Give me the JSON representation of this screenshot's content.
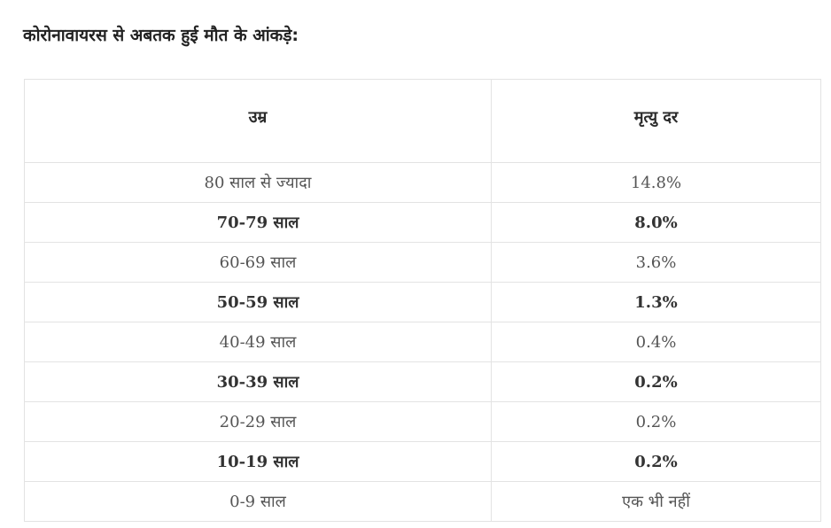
{
  "heading": "कोरोनावायरस से अबतक हुई मौत के आंकड़े:",
  "table": {
    "headers": [
      "उम्र",
      "मृत्यु दर"
    ],
    "rows": [
      {
        "age": "80 साल से ज्यादा",
        "rate": "14.8%",
        "bold": false
      },
      {
        "age": "70-79 साल",
        "rate": "8.0%",
        "bold": true
      },
      {
        "age": "60-69 साल",
        "rate": "3.6%",
        "bold": false
      },
      {
        "age": "50-59 साल",
        "rate": "1.3%",
        "bold": true
      },
      {
        "age": "40-49 साल",
        "rate": "0.4%",
        "bold": false
      },
      {
        "age": "30-39 साल",
        "rate": "0.2%",
        "bold": true
      },
      {
        "age": "20-29 साल",
        "rate": "0.2%",
        "bold": false
      },
      {
        "age": "10-19 साल",
        "rate": "0.2%",
        "bold": true
      },
      {
        "age": "0-9 साल",
        "rate": "एक भी नहीं",
        "bold": false
      }
    ]
  }
}
